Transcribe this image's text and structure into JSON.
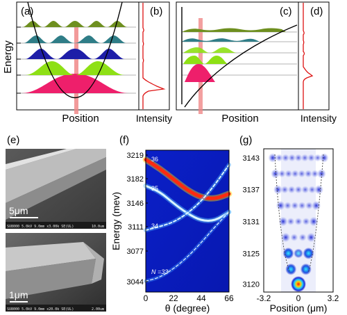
{
  "panels": {
    "a": {
      "label": "(a)",
      "ylabel": "Energy",
      "xlabel": "Position"
    },
    "b": {
      "label": "(b)",
      "xlabel": "Intensity"
    },
    "c": {
      "label": "(c)",
      "xlabel": "Position"
    },
    "d": {
      "label": "(d)",
      "xlabel": "Intensity"
    },
    "e": {
      "label": "(e)",
      "top_scale": "5μm",
      "bottom_scale": "1μm",
      "top_caption": "SU8000 5.0kV 9.0mm x3.00k SE(UL)",
      "top_caption_right": "10.0um",
      "bottom_caption": "SU8000 5.0kV 9.0mm x20.0k SE(UL)",
      "bottom_caption_right": "2.00um"
    },
    "f": {
      "label": "(f)",
      "ylabel": "Energy (mev)",
      "xlabel": "θ (degree)",
      "yticks": [
        "3219",
        "3182",
        "3146",
        "3111",
        "3077",
        "3044"
      ],
      "xticks": [
        "0",
        "22",
        "44",
        "66"
      ],
      "mode_labels": [
        "36",
        "35",
        "34",
        "N =33"
      ]
    },
    "g": {
      "label": "(g)",
      "xlabel": "Position (μm)",
      "yticks": [
        "3143",
        "3137",
        "3131",
        "3125",
        "3120"
      ],
      "xticks": [
        "-3.2",
        "0",
        "3.2"
      ]
    }
  },
  "chart_data": [
    {
      "type": "heatmap",
      "panel": "f",
      "xlabel": "θ (degree)",
      "ylabel": "Energy (mev)",
      "xlim": [
        0,
        66
      ],
      "ylim": [
        3030,
        3225
      ],
      "series": [
        {
          "name": "36",
          "x": [
            0,
            11,
            22,
            33,
            44,
            55,
            66
          ],
          "y": [
            3212,
            3200,
            3185,
            3170,
            3160,
            3158,
            3165
          ]
        },
        {
          "name": "35",
          "x": [
            0,
            11,
            22,
            33,
            44,
            55,
            66
          ],
          "y": [
            3176,
            3168,
            3152,
            3138,
            3128,
            3128,
            3140
          ]
        },
        {
          "name": "34",
          "x": [
            0,
            11,
            22,
            33,
            44,
            55,
            66
          ],
          "y": [
            3115,
            3120,
            3126,
            3138,
            3155,
            3178,
            3205
          ]
        },
        {
          "name": "N =33",
          "x": [
            0,
            11,
            22,
            33,
            44,
            55,
            66
          ],
          "y": [
            3045,
            3050,
            3062,
            3078,
            3098,
            3120,
            3140
          ]
        }
      ]
    },
    {
      "type": "heatmap",
      "panel": "g",
      "xlabel": "Position (μm)",
      "xlim": [
        -3.2,
        3.2
      ],
      "ylim": [
        3119,
        3146
      ],
      "modes_energy": [
        3120.5,
        3123.3,
        3126.3,
        3129.3,
        3132.3,
        3135.3,
        3138.3,
        3141.3,
        3144.3
      ],
      "modes_lobes": [
        1,
        2,
        3,
        4,
        5,
        6,
        7,
        8,
        9
      ]
    }
  ],
  "colors": {
    "wave_pink": "#ee1f6b",
    "wave_green": "#8ee015",
    "wave_blue": "#1e1ea8",
    "wave_teal": "#2f7d87",
    "wave_olive": "#6e8f1f",
    "pump_beam": "#f08888",
    "spectrum_red": "#dd1111",
    "heatmap_bg": "#0a1ec8"
  }
}
